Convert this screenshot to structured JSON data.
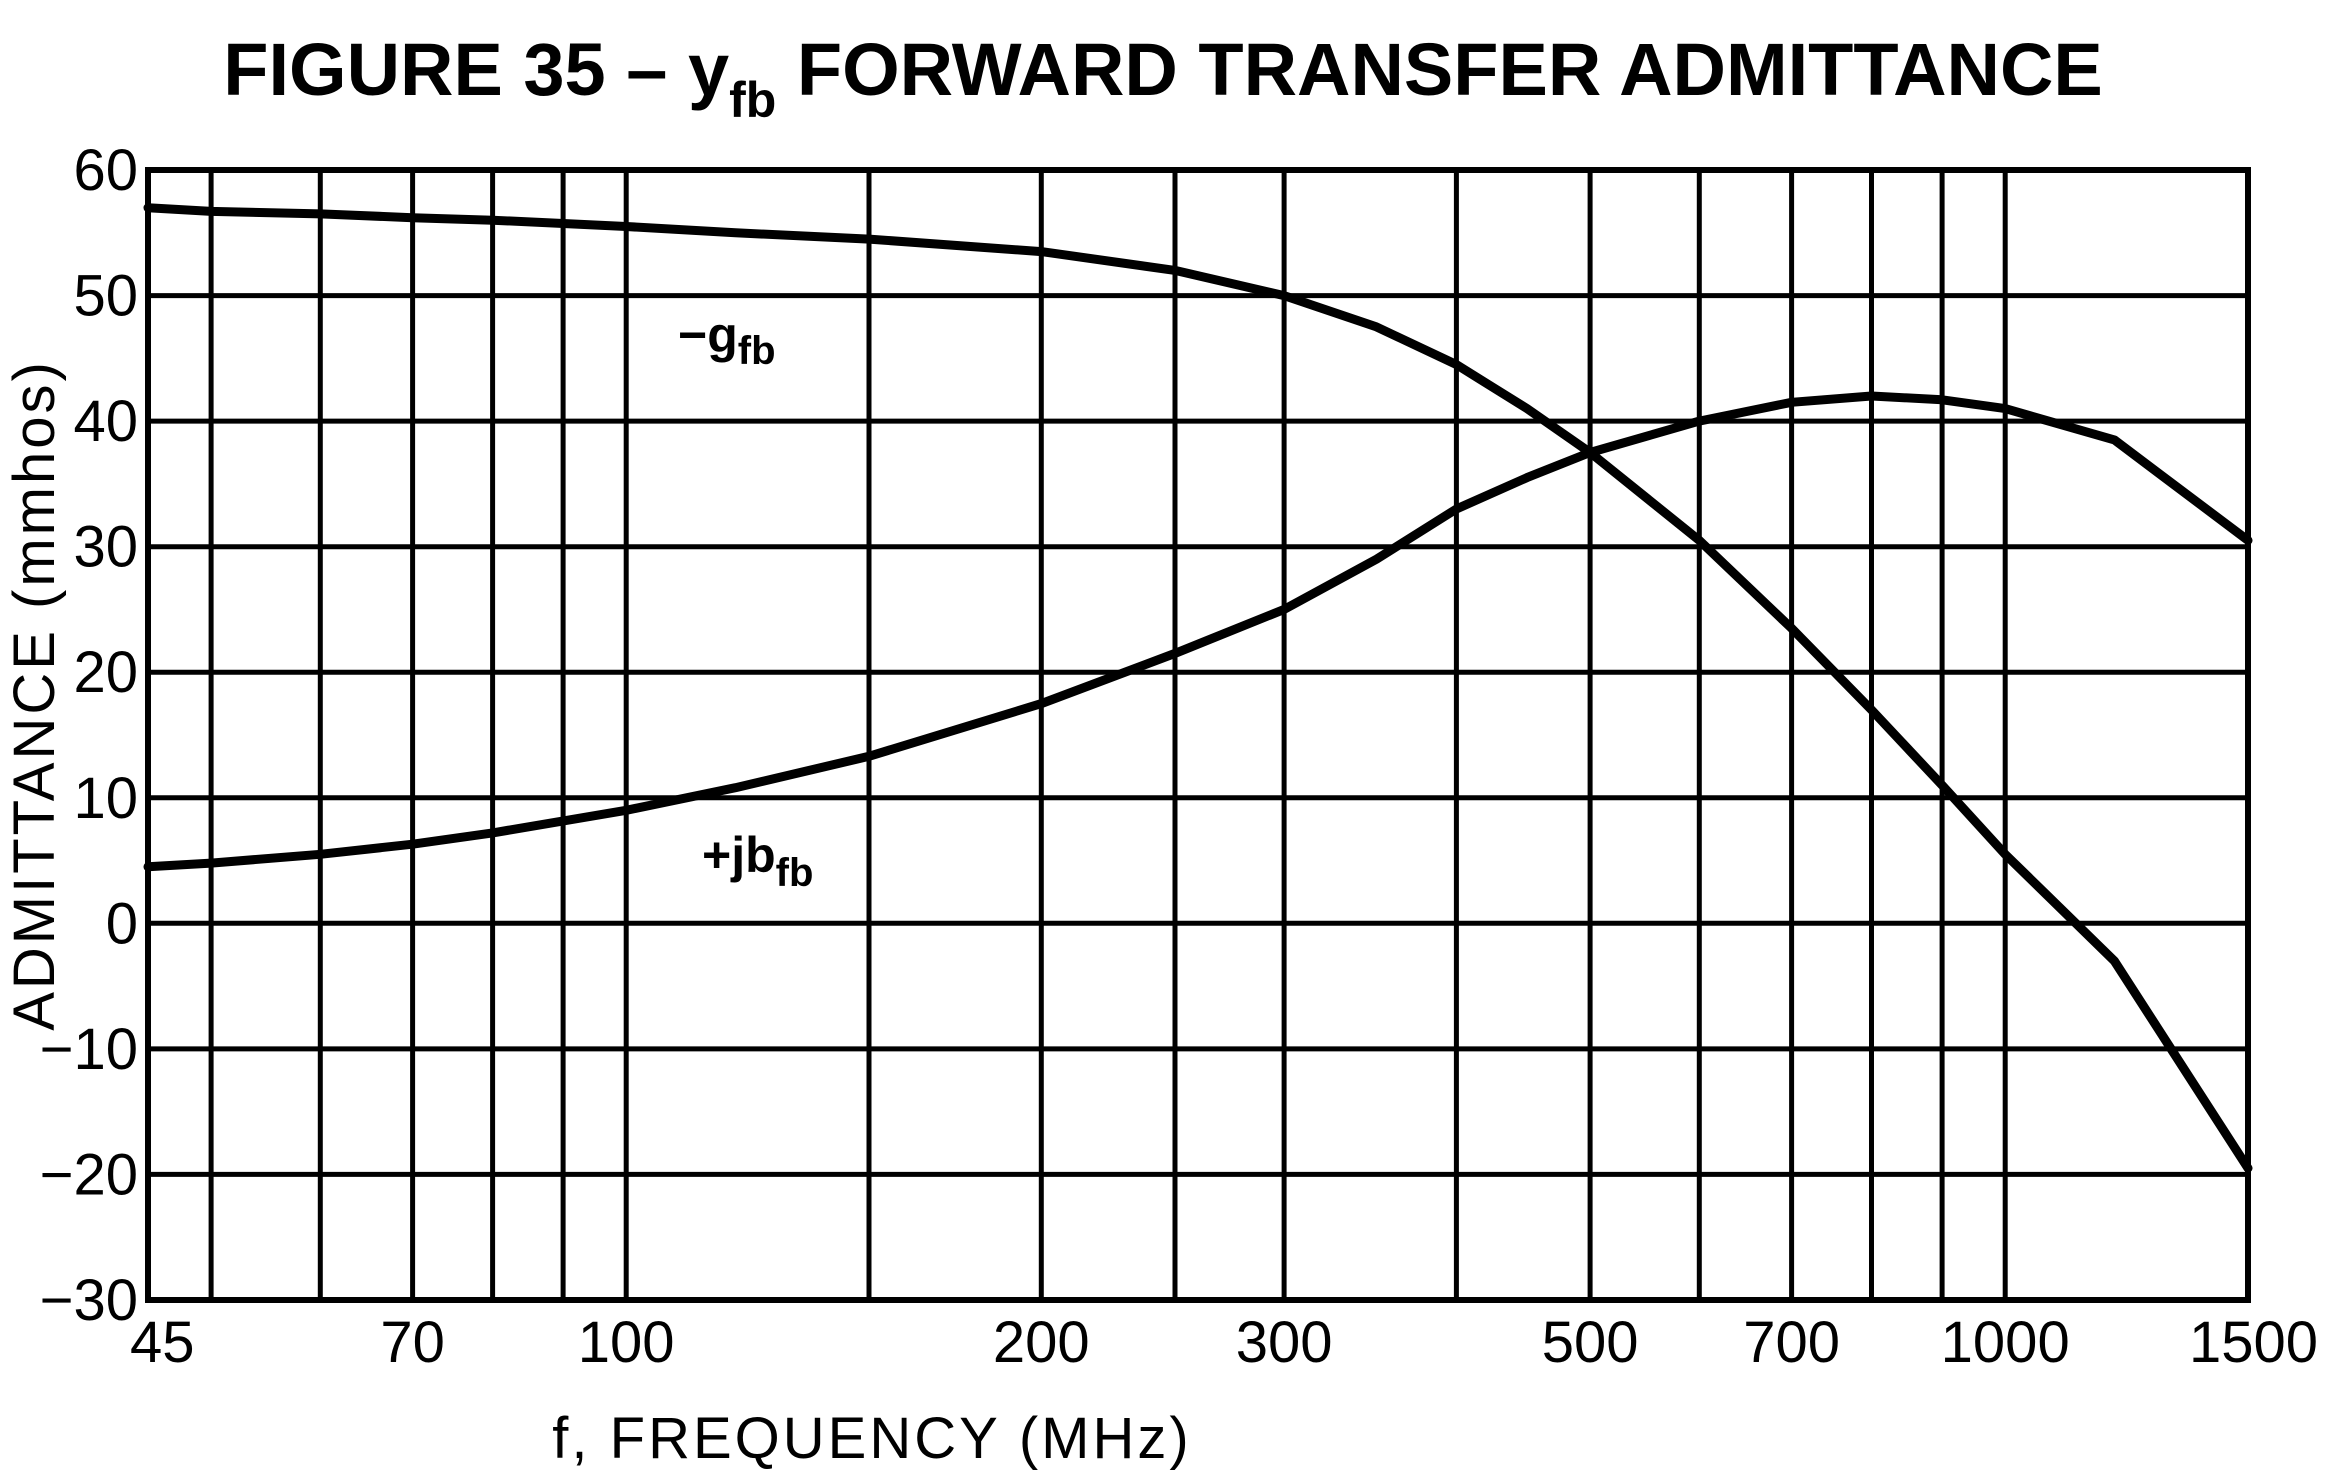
{
  "chart_data": {
    "type": "line",
    "title_prefix": "FIGURE 35 – y",
    "title_subscript": "fb",
    "title_suffix": " FORWARD TRANSFER ADMITTANCE",
    "xlabel": "f, FREQUENCY (MHz)",
    "ylabel": "ADMITTANCE (mmhos)",
    "x_scale": "log",
    "xlim": [
      45,
      1500
    ],
    "ylim": [
      -30,
      60
    ],
    "x_ticks": [
      {
        "value": 45,
        "label": "45"
      },
      {
        "value": 70,
        "label": "70"
      },
      {
        "value": 100,
        "label": "100"
      },
      {
        "value": 200,
        "label": "200"
      },
      {
        "value": 300,
        "label": "300"
      },
      {
        "value": 500,
        "label": "500"
      },
      {
        "value": 700,
        "label": "700"
      },
      {
        "value": 1000,
        "label": "1000"
      },
      {
        "value": 1500,
        "label": "1500"
      }
    ],
    "y_ticks": [
      {
        "value": 60,
        "label": "60"
      },
      {
        "value": 50,
        "label": "50"
      },
      {
        "value": 40,
        "label": "40"
      },
      {
        "value": 30,
        "label": "30"
      },
      {
        "value": 20,
        "label": "20"
      },
      {
        "value": 10,
        "label": "10"
      },
      {
        "value": 0,
        "label": "0"
      },
      {
        "value": -10,
        "label": "−10"
      },
      {
        "value": -20,
        "label": "−20"
      },
      {
        "value": -30,
        "label": "−30"
      }
    ],
    "x_gridlines": [
      45,
      50,
      60,
      70,
      80,
      90,
      100,
      150,
      200,
      250,
      300,
      400,
      500,
      600,
      700,
      800,
      900,
      1000,
      1500
    ],
    "y_gridlines": [
      60,
      50,
      40,
      30,
      20,
      10,
      0,
      -10,
      -20,
      -30
    ],
    "grid": true,
    "series": [
      {
        "name_main": "−g",
        "name_sub": "fb",
        "x": [
          45,
          50,
          60,
          70,
          80,
          100,
          120,
          150,
          200,
          250,
          300,
          350,
          400,
          450,
          500,
          600,
          700,
          800,
          900,
          1000,
          1200,
          1500
        ],
        "y": [
          57,
          56.7,
          56.5,
          56.2,
          56,
          55.5,
          55,
          54.5,
          53.5,
          52,
          50,
          47.5,
          44.5,
          41,
          37.5,
          30.5,
          23.5,
          17,
          11,
          5.5,
          -3,
          -19.5
        ]
      },
      {
        "name_main": "+jb",
        "name_sub": "fb",
        "x": [
          45,
          50,
          60,
          70,
          80,
          100,
          120,
          150,
          200,
          250,
          300,
          350,
          400,
          450,
          500,
          600,
          700,
          800,
          900,
          1000,
          1200,
          1500
        ],
        "y": [
          4.5,
          4.8,
          5.5,
          6.3,
          7.2,
          9,
          10.8,
          13.3,
          17.5,
          21.5,
          25,
          29,
          33,
          35.5,
          37.5,
          40,
          41.5,
          42,
          41.7,
          41,
          38.5,
          30.5
        ]
      }
    ]
  }
}
